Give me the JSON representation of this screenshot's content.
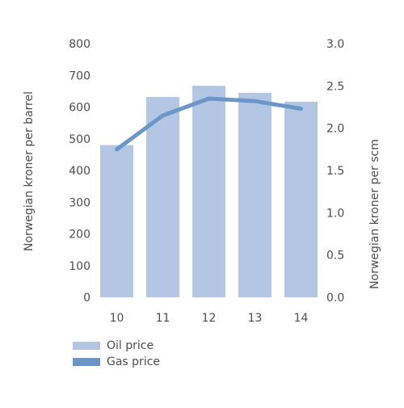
{
  "chart_data": {
    "type": "bar",
    "categories": [
      "10",
      "11",
      "12",
      "13",
      "14"
    ],
    "series": [
      {
        "name": "Oil price",
        "type": "bar",
        "axis": "left",
        "values": [
          480,
          632,
          667,
          645,
          617
        ],
        "color": "#b3c6e3"
      },
      {
        "name": "Gas price",
        "type": "line",
        "axis": "right",
        "values": [
          1.75,
          2.15,
          2.35,
          2.32,
          2.23
        ],
        "color": "#6b96c8"
      }
    ],
    "ylabel": "Norwegian kroner per barrel",
    "ylabel_right": "Norwegian kroner per scm",
    "ylim": [
      0,
      800
    ],
    "ylim_right": [
      0,
      3.0
    ],
    "yticks": [
      "0",
      "100",
      "200",
      "300",
      "400",
      "500",
      "600",
      "700",
      "800"
    ],
    "yticks_right": [
      "0.0",
      "0.5",
      "1.0",
      "1.5",
      "2.0",
      "2.5",
      "3.0"
    ],
    "grid": false,
    "legend_position": "bottom-left"
  }
}
